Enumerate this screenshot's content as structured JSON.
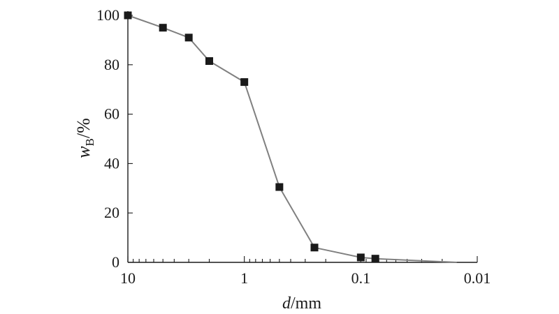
{
  "chart_data": {
    "type": "line",
    "title": "",
    "x_scale": "log",
    "x_reversed": true,
    "xlim": [
      10,
      0.01
    ],
    "ylim": [
      0,
      100
    ],
    "x_ticks": [
      10,
      1,
      0.1,
      0.01
    ],
    "x_tick_labels": [
      "10",
      "1",
      "0.1",
      "0.01"
    ],
    "y_ticks": [
      0,
      20,
      40,
      60,
      80,
      100
    ],
    "y_tick_labels": [
      "0",
      "20",
      "40",
      "60",
      "80",
      "100"
    ],
    "xlabel": {
      "italic": "d",
      "rest": "/mm"
    },
    "ylabel": {
      "italic": "w",
      "sub": "B",
      "rest": "/%"
    },
    "grid": false,
    "legend": "none",
    "colors": {
      "line": "#808080",
      "marker": "#1a1a1a",
      "axis": "#1a1a1a"
    },
    "series": [
      {
        "x": [
          10,
          5,
          3,
          2,
          1,
          0.5,
          0.25,
          0.1,
          0.075,
          0.015
        ],
        "y": [
          100,
          95,
          91,
          81.5,
          73,
          30.5,
          6,
          2,
          1.5,
          0
        ],
        "markers": [
          true,
          true,
          true,
          true,
          true,
          true,
          true,
          true,
          true,
          false
        ]
      }
    ]
  }
}
